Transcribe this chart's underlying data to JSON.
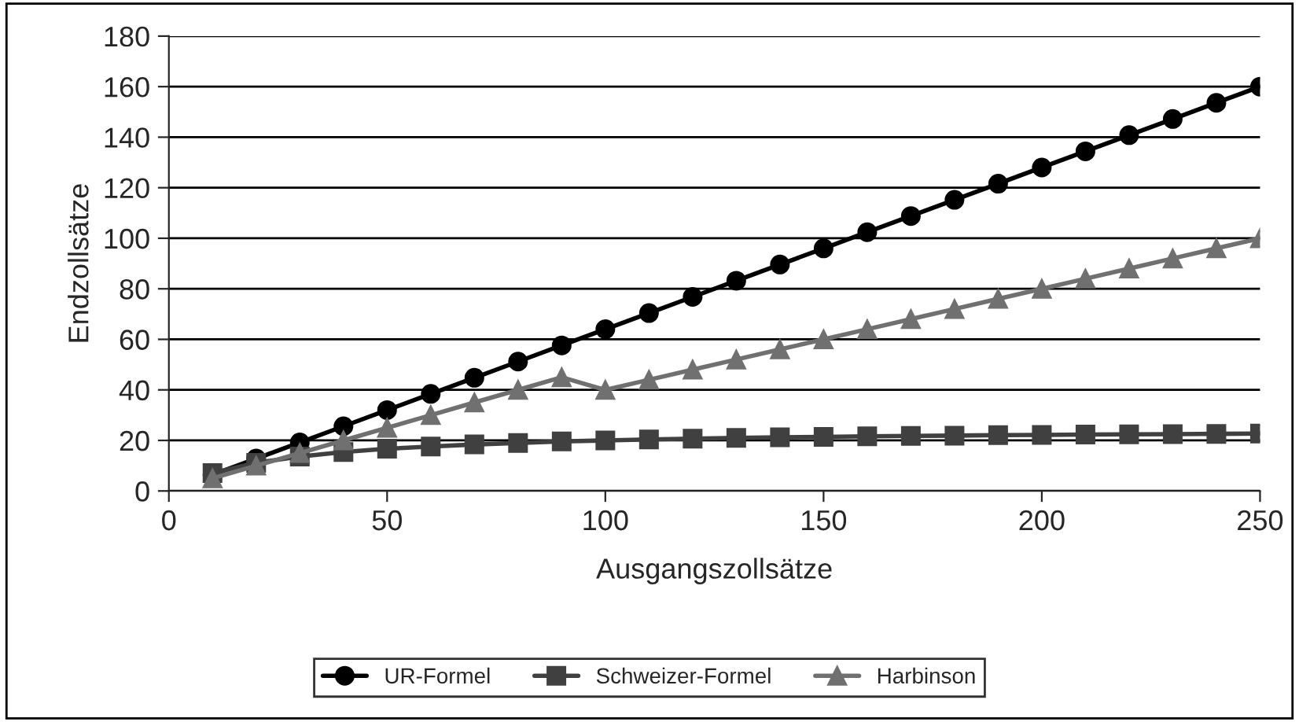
{
  "chart_data": {
    "type": "line",
    "xlabel": "Ausgangszollsätze",
    "ylabel": "Endzollsätze",
    "x": [
      10,
      20,
      30,
      40,
      50,
      60,
      70,
      80,
      90,
      100,
      110,
      120,
      130,
      140,
      150,
      160,
      170,
      180,
      190,
      200,
      210,
      220,
      230,
      240,
      250
    ],
    "series": [
      {
        "name": "UR-Formel",
        "color": "#000000",
        "marker": "circle",
        "values": [
          6.4,
          12.8,
          19.2,
          25.6,
          32,
          38.4,
          44.8,
          51.2,
          57.6,
          64,
          70.4,
          76.8,
          83.2,
          89.6,
          96,
          102.4,
          108.8,
          115.2,
          121.6,
          128,
          134.4,
          140.8,
          147.2,
          153.6,
          160
        ]
      },
      {
        "name": "Schweizer-Formel",
        "color": "#404040",
        "marker": "square",
        "values": [
          7.1,
          11.1,
          13.6,
          15.4,
          16.7,
          17.6,
          18.4,
          19,
          19.6,
          20,
          20.4,
          20.7,
          21,
          21.2,
          21.4,
          21.6,
          21.8,
          21.9,
          22.1,
          22.2,
          22.3,
          22.4,
          22.5,
          22.6,
          22.7
        ]
      },
      {
        "name": "Harbinson",
        "color": "#707070",
        "marker": "triangle",
        "values": [
          5,
          10,
          15,
          20,
          25,
          30,
          35,
          40,
          45,
          40,
          44,
          48,
          52,
          56,
          60,
          64,
          68,
          72,
          76,
          80,
          84,
          88,
          92,
          96,
          100
        ]
      }
    ],
    "xlim": [
      0,
      250
    ],
    "xticks": [
      0,
      50,
      100,
      150,
      200,
      250
    ],
    "ylim": [
      0,
      180
    ],
    "yticks": [
      0,
      20,
      40,
      60,
      80,
      100,
      120,
      140,
      160,
      180
    ],
    "grid": "y",
    "legend": "bottom"
  }
}
